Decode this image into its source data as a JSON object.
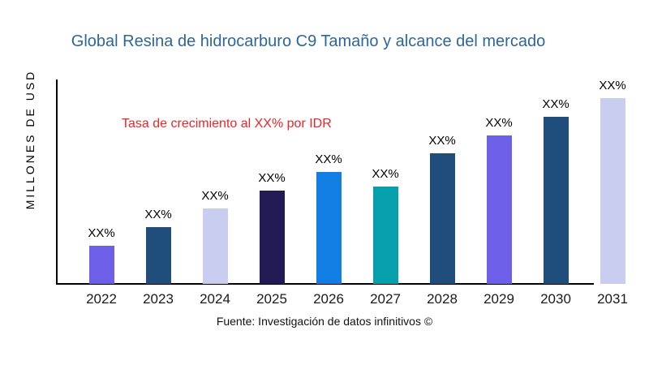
{
  "title": {
    "text": "Global Resina de hidrocarburo C9 Tamaño y alcance del mercado",
    "color": "#2e6699"
  },
  "annotation": {
    "text": "Tasa de crecimiento al XX% por IDR",
    "color": "#e8252a"
  },
  "source": {
    "text": "Fuente: Investigación de datos infinitivos ©"
  },
  "chart_data": {
    "type": "bar",
    "title": "Global Resina de hidrocarburo C9 Tamaño y alcance del mercado",
    "xlabel": "",
    "ylabel": "MILLONES DE USD",
    "categories": [
      "2022",
      "2023",
      "2024",
      "2025",
      "2026",
      "2027",
      "2028",
      "2029",
      "2030",
      "2031"
    ],
    "values": [
      47,
      70,
      93,
      115,
      138,
      120,
      161,
      183,
      206,
      229
    ],
    "bar_labels": [
      "XX%",
      "XX%",
      "XX%",
      "XX%",
      "XX%",
      "XX%",
      "XX%",
      "XX%",
      "XX%",
      "XX%"
    ],
    "colors": [
      "#6e5fe8",
      "#1f4e7c",
      "#c9cdf0",
      "#211a54",
      "#107ee3",
      "#05a0ac",
      "#1f4e7c",
      "#6e5fe8",
      "#1f4e7c",
      "#c9cdf0"
    ],
    "ylim": [
      0,
      252
    ],
    "y_tick_labels": [],
    "grid": false,
    "legend": false,
    "axis_color": "#000000"
  }
}
